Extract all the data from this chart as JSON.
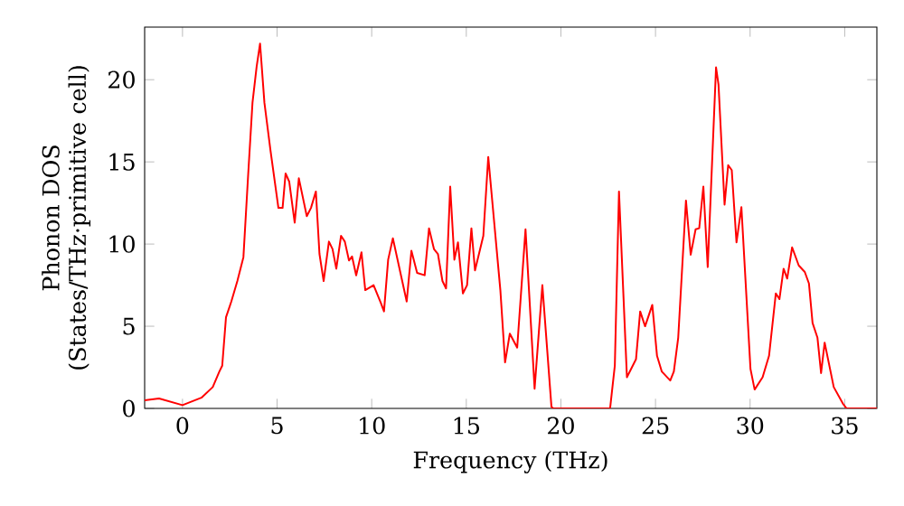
{
  "chart_data": {
    "type": "line",
    "xlabel": "Frequency (THz)",
    "ylabel": "Phonon DOS (States/THz·primitive cell)",
    "xlim": [
      -2,
      36.7
    ],
    "ylim": [
      0,
      23.2
    ],
    "xticks": [
      0,
      5,
      10,
      15,
      20,
      25,
      30,
      35
    ],
    "yticks": [
      0,
      5,
      10,
      15,
      20
    ],
    "series": [
      {
        "color": "#ff0000",
        "x": [
          -2,
          -1.24,
          0,
          1.0,
          1.6,
          1.95,
          2.1,
          2.3,
          2.58,
          2.9,
          3.22,
          3.47,
          3.7,
          3.92,
          4.1,
          4.33,
          4.65,
          5.07,
          5.29,
          5.45,
          5.64,
          5.93,
          6.15,
          6.57,
          6.79,
          7.05,
          7.24,
          7.46,
          7.74,
          7.93,
          8.13,
          8.38,
          8.58,
          8.8,
          8.96,
          9.18,
          9.46,
          9.66,
          10.1,
          10.49,
          10.65,
          10.87,
          11.12,
          11.85,
          12.1,
          12.4,
          12.8,
          13.03,
          13.29,
          13.5,
          13.74,
          13.93,
          14.15,
          14.37,
          14.56,
          14.82,
          15.04,
          15.27,
          15.46,
          15.9,
          16.16,
          16.8,
          17.05,
          17.3,
          17.69,
          18.13,
          18.61,
          19.02,
          19.5,
          19.6,
          22.6,
          22.85,
          23.07,
          23.49,
          23.97,
          24.19,
          24.45,
          24.83,
          25.08,
          25.33,
          25.78,
          25.97,
          26.2,
          26.61,
          26.86,
          27.12,
          27.31,
          27.53,
          27.76,
          28.2,
          28.33,
          28.65,
          28.84,
          29.03,
          29.28,
          29.54,
          30.02,
          30.24,
          30.66,
          31.0,
          31.36,
          31.55,
          31.77,
          31.96,
          32.22,
          32.57,
          32.89,
          33.11,
          33.3,
          33.56,
          33.75,
          33.94,
          34.42,
          34.9,
          35.1,
          36.7
        ],
        "values": [
          0.5,
          0.6,
          0.2,
          0.65,
          1.3,
          2.25,
          2.6,
          5.55,
          6.5,
          7.75,
          9.2,
          14.2,
          18.6,
          20.8,
          22.2,
          18.6,
          15.7,
          12.2,
          12.2,
          14.3,
          13.8,
          11.3,
          14.0,
          11.7,
          12.2,
          13.2,
          9.4,
          7.75,
          10.15,
          9.7,
          8.5,
          10.5,
          10.15,
          9.0,
          9.25,
          8.1,
          9.5,
          7.2,
          7.5,
          6.4,
          5.9,
          9.05,
          10.35,
          6.5,
          9.6,
          8.25,
          8.1,
          10.96,
          9.7,
          9.4,
          7.75,
          7.3,
          13.5,
          9.05,
          10.1,
          7.0,
          7.5,
          10.96,
          8.4,
          10.5,
          15.3,
          7.2,
          2.8,
          4.55,
          3.7,
          10.9,
          1.2,
          7.5,
          0.1,
          0,
          0,
          2.6,
          13.2,
          1.9,
          3.0,
          5.9,
          5.0,
          6.3,
          3.2,
          2.25,
          1.7,
          2.25,
          4.3,
          12.65,
          9.35,
          10.9,
          10.96,
          13.5,
          8.6,
          20.75,
          19.7,
          12.4,
          14.8,
          14.5,
          10.1,
          12.25,
          2.4,
          1.15,
          1.9,
          3.2,
          7.0,
          6.65,
          8.5,
          7.9,
          9.8,
          8.7,
          8.3,
          7.6,
          5.2,
          4.3,
          2.15,
          4.0,
          1.3,
          0.3,
          0,
          0
        ]
      }
    ]
  }
}
